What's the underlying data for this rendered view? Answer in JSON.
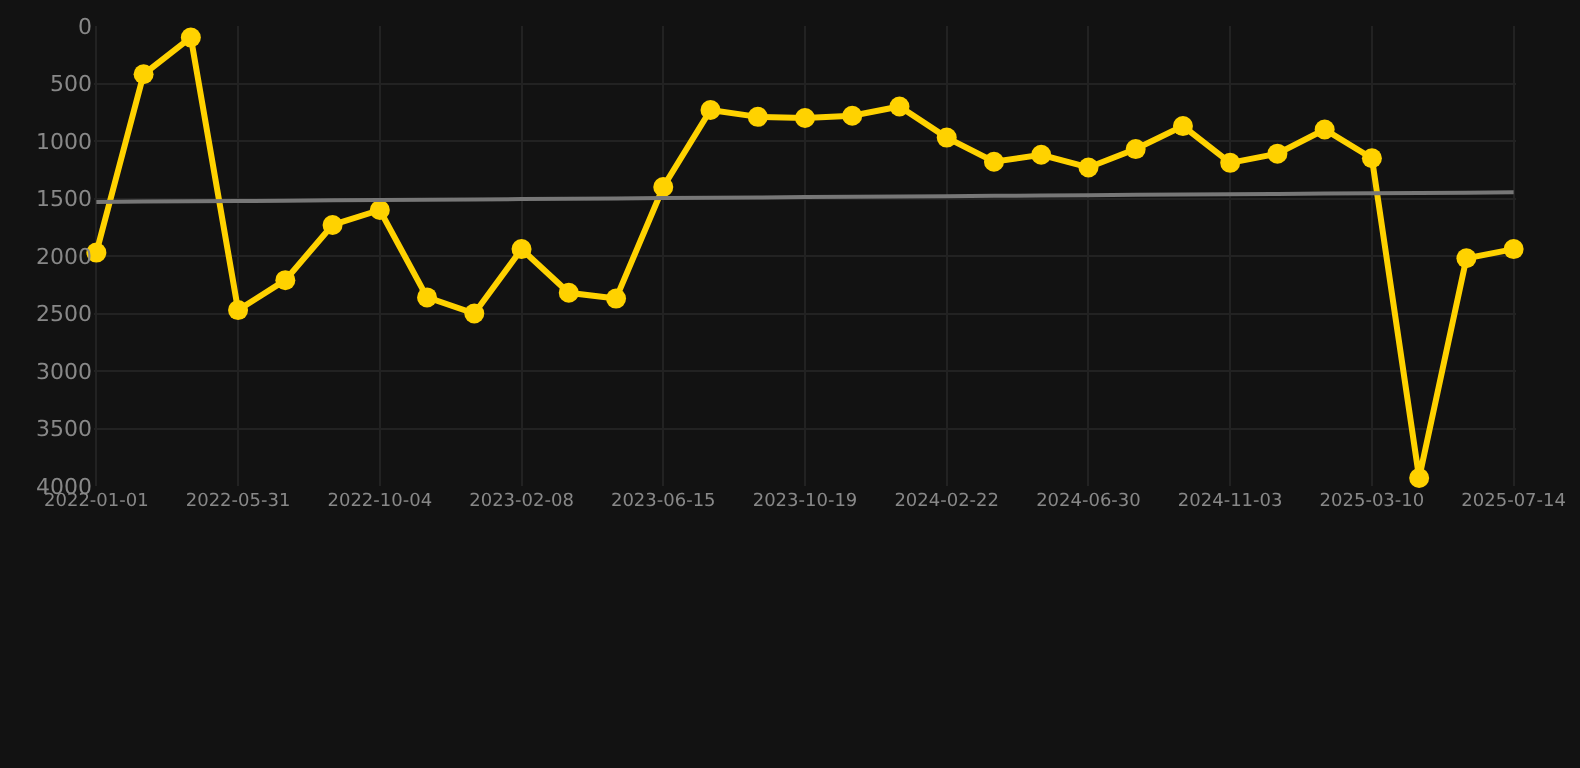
{
  "chart_data": {
    "type": "line",
    "categories": [
      "2022-01-01",
      null,
      null,
      "2022-05-31",
      null,
      null,
      "2022-10-04",
      null,
      null,
      "2023-02-08",
      null,
      null,
      "2023-06-15",
      null,
      null,
      "2023-10-19",
      null,
      null,
      "2024-02-22",
      null,
      null,
      "2024-06-30",
      null,
      null,
      "2024-11-03",
      null,
      null,
      "2025-03-10",
      null,
      null,
      "2025-07-14"
    ],
    "series": [
      {
        "color": "#ffd200",
        "values": [
          1970,
          420,
          100,
          2470,
          2210,
          1730,
          1600,
          2360,
          2500,
          1940,
          2320,
          2370,
          1400,
          730,
          790,
          800,
          780,
          700,
          970,
          1180,
          1120,
          1230,
          1070,
          870,
          1190,
          1110,
          900,
          1150,
          3930,
          2020,
          1940
        ]
      },
      {
        "type": "line",
        "color": "#777777",
        "marker": "none",
        "values": [
          1530,
          1527,
          1524,
          1522,
          1519,
          1516,
          1513,
          1510,
          1508,
          1505,
          1502,
          1499,
          1496,
          1494,
          1491,
          1488,
          1485,
          1482,
          1480,
          1477,
          1474,
          1471,
          1468,
          1466,
          1463,
          1460,
          1457,
          1454,
          1452,
          1449,
          1446
        ]
      }
    ],
    "ylim": [
      4000,
      0
    ],
    "yticks": [
      0,
      500,
      1000,
      1500,
      2000,
      2500,
      3000,
      3500,
      4000
    ],
    "grid": true,
    "marker": "circle",
    "line_style": "solid"
  }
}
